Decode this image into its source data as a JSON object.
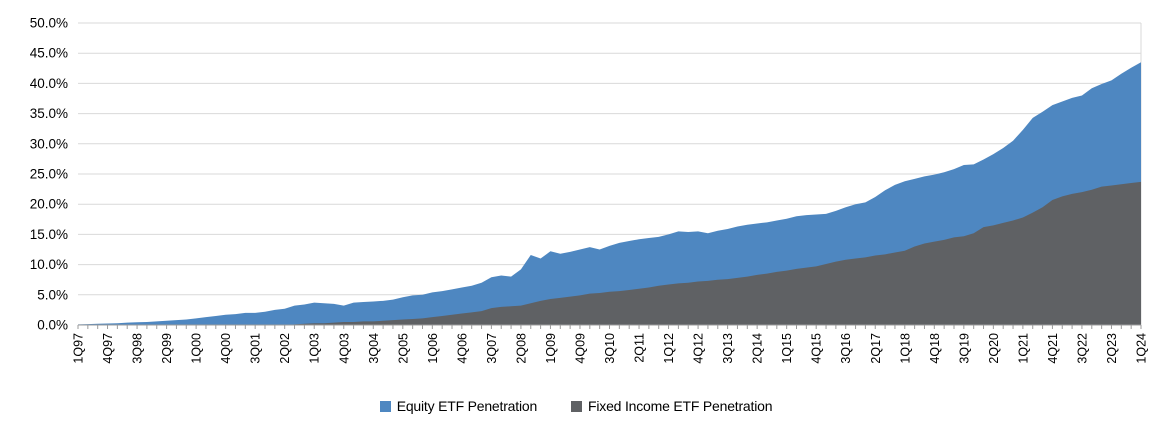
{
  "legend": {
    "items": [
      {
        "label": "Equity ETF Penetration",
        "color": "#4E87C1"
      },
      {
        "label": "Fixed Income ETF Penetration",
        "color": "#5F6164"
      }
    ]
  },
  "chart_data": {
    "type": "area",
    "title": "",
    "xlabel": "",
    "ylabel": "",
    "ylim": [
      0,
      50
    ],
    "grid": true,
    "legend_position": "bottom",
    "y_tick_labels": [
      "0.0%",
      "5.0%",
      "10.0%",
      "15.0%",
      "20.0%",
      "25.0%",
      "30.0%",
      "35.0%",
      "40.0%",
      "45.0%",
      "50.0%"
    ],
    "x_tick_labels": [
      "1Q97",
      "4Q97",
      "3Q98",
      "2Q99",
      "1Q00",
      "4Q00",
      "3Q01",
      "2Q02",
      "1Q03",
      "4Q03",
      "3Q04",
      "2Q05",
      "1Q06",
      "4Q06",
      "3Q07",
      "2Q08",
      "1Q09",
      "4Q09",
      "3Q10",
      "2Q11",
      "1Q12",
      "4Q12",
      "3Q13",
      "2Q14",
      "1Q15",
      "4Q15",
      "3Q16",
      "2Q17",
      "1Q18",
      "4Q18",
      "3Q19",
      "2Q20",
      "1Q21",
      "4Q21",
      "3Q22",
      "2Q23",
      "1Q24"
    ],
    "x_label_every": 3,
    "categories": [
      "1Q97",
      "2Q97",
      "3Q97",
      "4Q97",
      "1Q98",
      "2Q98",
      "3Q98",
      "4Q98",
      "1Q99",
      "2Q99",
      "3Q99",
      "4Q99",
      "1Q00",
      "2Q00",
      "3Q00",
      "4Q00",
      "1Q01",
      "2Q01",
      "3Q01",
      "4Q01",
      "1Q02",
      "2Q02",
      "3Q02",
      "4Q02",
      "1Q03",
      "2Q03",
      "3Q03",
      "4Q03",
      "1Q04",
      "2Q04",
      "3Q04",
      "4Q04",
      "1Q05",
      "2Q05",
      "3Q05",
      "4Q05",
      "1Q06",
      "2Q06",
      "3Q06",
      "4Q06",
      "1Q07",
      "2Q07",
      "3Q07",
      "4Q07",
      "1Q08",
      "2Q08",
      "3Q08",
      "4Q08",
      "1Q09",
      "2Q09",
      "3Q09",
      "4Q09",
      "1Q10",
      "2Q10",
      "3Q10",
      "4Q10",
      "1Q11",
      "2Q11",
      "3Q11",
      "4Q11",
      "1Q12",
      "2Q12",
      "3Q12",
      "4Q12",
      "1Q13",
      "2Q13",
      "3Q13",
      "4Q13",
      "1Q14",
      "2Q14",
      "3Q14",
      "4Q14",
      "1Q15",
      "2Q15",
      "3Q15",
      "4Q15",
      "1Q16",
      "2Q16",
      "3Q16",
      "4Q16",
      "1Q17",
      "2Q17",
      "3Q17",
      "4Q17",
      "1Q18",
      "2Q18",
      "3Q18",
      "4Q18",
      "1Q19",
      "2Q19",
      "3Q19",
      "4Q19",
      "1Q20",
      "2Q20",
      "3Q20",
      "4Q20",
      "1Q21",
      "2Q21",
      "3Q21",
      "4Q21",
      "1Q22",
      "2Q22",
      "3Q22",
      "4Q22",
      "1Q23",
      "2Q23",
      "3Q23",
      "4Q23",
      "1Q24"
    ],
    "series": [
      {
        "name": "Equity ETF Penetration",
        "color": "#4E87C1",
        "values": [
          0.1,
          0.15,
          0.2,
          0.25,
          0.3,
          0.4,
          0.45,
          0.5,
          0.6,
          0.7,
          0.8,
          0.9,
          1.1,
          1.3,
          1.5,
          1.7,
          1.8,
          2.0,
          2.0,
          2.2,
          2.5,
          2.7,
          3.2,
          3.4,
          3.7,
          3.6,
          3.5,
          3.2,
          3.7,
          3.8,
          3.9,
          4.0,
          4.2,
          4.6,
          4.9,
          5.0,
          5.4,
          5.6,
          5.9,
          6.2,
          6.5,
          7.0,
          7.9,
          8.2,
          8.0,
          9.2,
          11.6,
          11.0,
          12.2,
          11.8,
          12.1,
          12.5,
          12.9,
          12.5,
          13.1,
          13.6,
          13.9,
          14.2,
          14.4,
          14.6,
          15.0,
          15.5,
          15.4,
          15.5,
          15.2,
          15.6,
          15.9,
          16.3,
          16.6,
          16.8,
          17.0,
          17.3,
          17.6,
          18.0,
          18.2,
          18.3,
          18.4,
          18.9,
          19.5,
          20.0,
          20.3,
          21.2,
          22.3,
          23.2,
          23.8,
          24.2,
          24.6,
          24.9,
          25.3,
          25.8,
          26.5,
          26.6,
          27.4,
          28.3,
          29.3,
          30.5,
          32.3,
          34.3,
          35.3,
          36.4,
          37.0,
          37.6,
          38.0,
          39.2,
          39.9,
          40.5,
          41.6,
          42.6,
          43.5
        ]
      },
      {
        "name": "Fixed Income ETF Penetration",
        "color": "#5F6164",
        "values": [
          0,
          0,
          0,
          0,
          0,
          0,
          0,
          0,
          0,
          0,
          0,
          0,
          0,
          0,
          0,
          0,
          0,
          0,
          0,
          0,
          0,
          0,
          0.1,
          0.2,
          0.3,
          0.3,
          0.4,
          0.5,
          0.5,
          0.6,
          0.6,
          0.7,
          0.8,
          0.9,
          1.0,
          1.1,
          1.3,
          1.5,
          1.7,
          1.9,
          2.1,
          2.3,
          2.8,
          3.0,
          3.1,
          3.2,
          3.6,
          4.0,
          4.3,
          4.5,
          4.7,
          4.9,
          5.2,
          5.3,
          5.5,
          5.6,
          5.8,
          6.0,
          6.2,
          6.5,
          6.7,
          6.9,
          7.0,
          7.2,
          7.3,
          7.5,
          7.6,
          7.8,
          8.0,
          8.3,
          8.5,
          8.8,
          9.0,
          9.3,
          9.5,
          9.7,
          10.1,
          10.5,
          10.8,
          11.0,
          11.2,
          11.5,
          11.7,
          12.0,
          12.3,
          13.0,
          13.5,
          13.8,
          14.1,
          14.5,
          14.7,
          15.2,
          16.2,
          16.5,
          16.9,
          17.3,
          17.8,
          18.6,
          19.5,
          20.7,
          21.3,
          21.7,
          22.0,
          22.4,
          22.9,
          23.1,
          23.3,
          23.5,
          23.7
        ]
      }
    ],
    "colors": {
      "gridline": "#D9D9D9",
      "axis": "#9B9B9B",
      "tick": "#9B9B9B",
      "text": "#000000"
    }
  }
}
